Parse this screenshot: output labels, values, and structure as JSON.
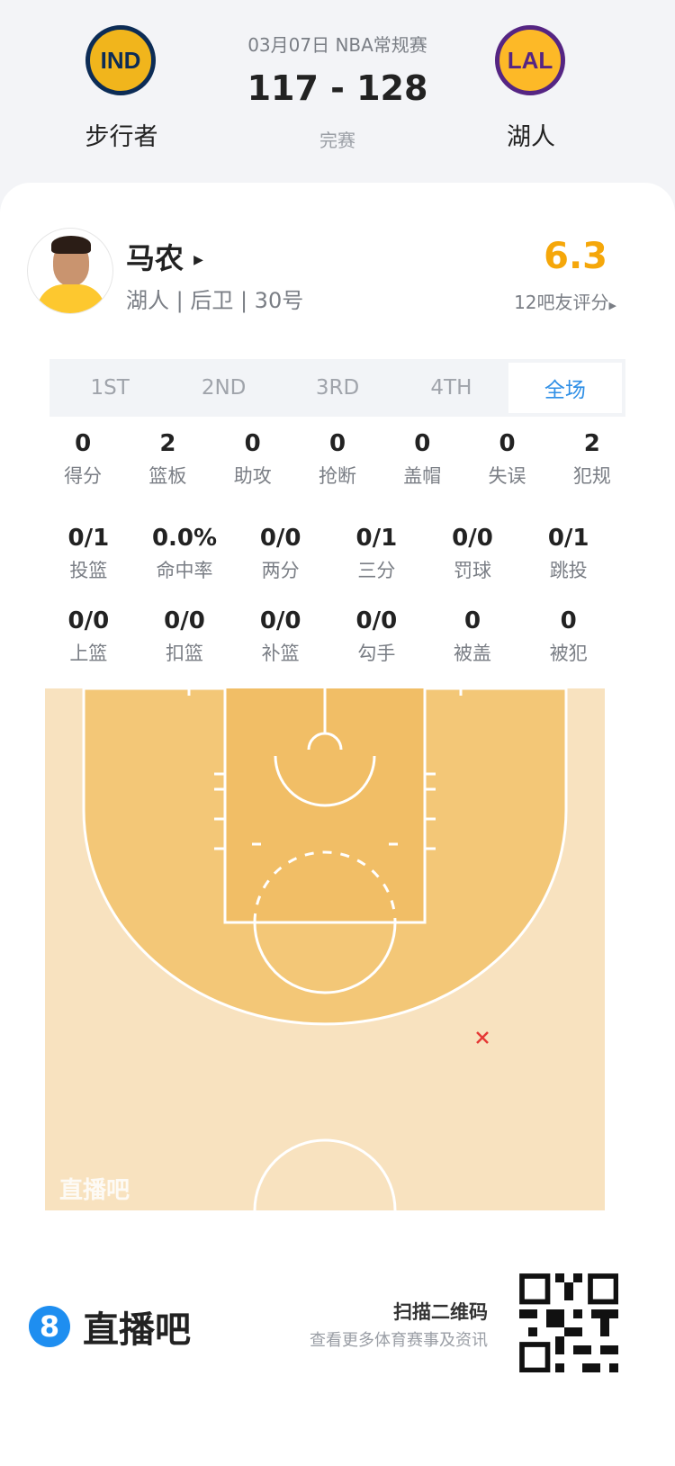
{
  "game": {
    "date_league": "03月07日 NBA常规赛",
    "score": "117 - 128",
    "status": "完赛",
    "home": {
      "name": "步行者",
      "logo_text": "IND"
    },
    "away": {
      "name": "湖人",
      "logo_text": "LAL"
    }
  },
  "player": {
    "name": "马农",
    "info": "湖人 | 后卫 | 30号",
    "rating": "6.3",
    "rating_label": "12吧友评分",
    "rating_color": "#f5a70a"
  },
  "tabs": [
    {
      "label": "1ST"
    },
    {
      "label": "2ND"
    },
    {
      "label": "3RD"
    },
    {
      "label": "4TH"
    },
    {
      "label": "全场",
      "active": true
    }
  ],
  "stats": {
    "row1": [
      {
        "v": "0",
        "l": "得分"
      },
      {
        "v": "2",
        "l": "篮板"
      },
      {
        "v": "0",
        "l": "助攻"
      },
      {
        "v": "0",
        "l": "抢断"
      },
      {
        "v": "0",
        "l": "盖帽"
      },
      {
        "v": "0",
        "l": "失误"
      },
      {
        "v": "2",
        "l": "犯规"
      }
    ],
    "row2": [
      {
        "v": "0/1",
        "l": "投篮"
      },
      {
        "v": "0.0%",
        "l": "命中率"
      },
      {
        "v": "0/0",
        "l": "两分"
      },
      {
        "v": "0/1",
        "l": "三分"
      },
      {
        "v": "0/0",
        "l": "罚球"
      },
      {
        "v": "0/1",
        "l": "跳投"
      }
    ],
    "row3": [
      {
        "v": "0/0",
        "l": "上篮"
      },
      {
        "v": "0/0",
        "l": "扣篮"
      },
      {
        "v": "0/0",
        "l": "补篮"
      },
      {
        "v": "0/0",
        "l": "勾手"
      },
      {
        "v": "0",
        "l": "被盖"
      },
      {
        "v": "0",
        "l": "被犯"
      }
    ]
  },
  "shot_chart": {
    "watermark": "直播吧",
    "shots": [
      {
        "result": "miss",
        "zone": "three-point right wing"
      }
    ]
  },
  "footer": {
    "brand": "直播吧",
    "brand_icon": "8",
    "scan_title": "扫描二维码",
    "scan_sub": "查看更多体育赛事及资讯",
    "accent": "#1e8ef0"
  }
}
